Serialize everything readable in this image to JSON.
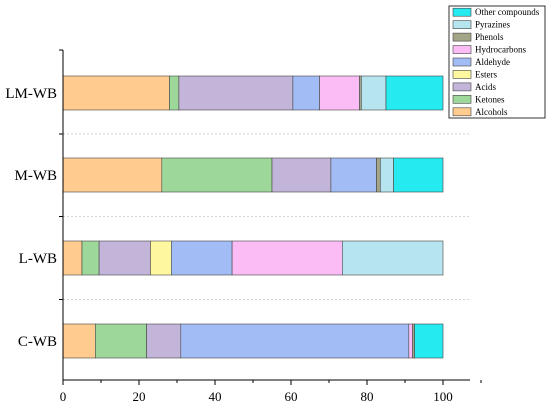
{
  "chart_data": {
    "type": "bar",
    "orientation": "horizontal",
    "stacked": true,
    "categories": [
      "C-WB",
      "L-WB",
      "M-WB",
      "LM-WB"
    ],
    "xlim": [
      0,
      100
    ],
    "x_ticks": [
      0,
      20,
      40,
      60,
      80,
      100
    ],
    "grid": "dotted horizontal separators",
    "legend_position": "top-right",
    "series": [
      {
        "name": "Alcohols",
        "color": "#FFCB8F",
        "values": [
          8.5,
          5.0,
          26.0,
          28.0
        ]
      },
      {
        "name": "Ketones",
        "color": "#9DD89A",
        "values": [
          13.5,
          4.5,
          29.0,
          2.5
        ]
      },
      {
        "name": "Acids",
        "color": "#C3B5DA",
        "values": [
          9.0,
          13.5,
          15.5,
          30.0
        ]
      },
      {
        "name": "Esters",
        "color": "#FFF7A0",
        "values": [
          0.0,
          5.5,
          0.0,
          0.0
        ]
      },
      {
        "name": "Aldehyde",
        "color": "#A2BDF5",
        "values": [
          60.0,
          16.0,
          12.0,
          7.0
        ]
      },
      {
        "name": "Hydrocarbons",
        "color": "#FBBCF6",
        "values": [
          1.0,
          29.0,
          0.0,
          10.5
        ]
      },
      {
        "name": "Phenols",
        "color": "#A4A487",
        "values": [
          0.5,
          0.0,
          1.0,
          0.5
        ]
      },
      {
        "name": "Pyrazines",
        "color": "#B6E4EF",
        "values": [
          0.0,
          26.5,
          3.5,
          6.5
        ]
      },
      {
        "name": "Other compounds",
        "color": "#25EAEF",
        "values": [
          7.5,
          0.0,
          13.0,
          15.0
        ]
      }
    ]
  }
}
